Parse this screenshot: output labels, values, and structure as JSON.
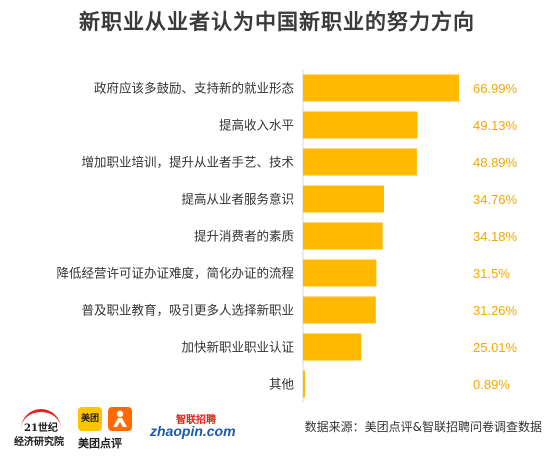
{
  "title": "新职业从业者认为中国新职业的努力方向",
  "source": "数据来源：美团点评&智联招聘问卷调查数据",
  "colors": {
    "bar": "#ffba00",
    "value_text": "#f3a800",
    "logo_red": "#e2231a",
    "logo_blue": "#1a5aa8",
    "meituan_yellow": "#ffc300"
  },
  "logos": {
    "inst_21_line1": "21世纪",
    "inst_21_line2": "经济研究院",
    "meituan_box": "美团",
    "meituan_text": "美团点评",
    "zhaopin_cn": "智联招聘",
    "zhaopin_en": "zhaopin.com"
  },
  "chart_data": {
    "type": "bar",
    "orientation": "horizontal",
    "title": "新职业从业者认为中国新职业的努力方向",
    "categories": [
      "政府应该多鼓励、支持新的就业形态",
      "提高收入水平",
      "增加职业培训，提升从业者手艺、技术",
      "提高从业者服务意识",
      "提升消费者的素质",
      "降低经营许可证办证难度，简化办证的流程",
      "普及职业教育，吸引更多人选择新职业",
      "加快新职业职业认证",
      "其他"
    ],
    "values": [
      66.99,
      49.13,
      48.89,
      34.76,
      34.18,
      31.5,
      31.26,
      25.01,
      0.89
    ],
    "value_labels": [
      "66.99%",
      "49.13%",
      "48.89%",
      "34.76%",
      "34.18%",
      "31.5%",
      "31.26%",
      "25.01%",
      "0.89%"
    ],
    "xlim": [
      0,
      100
    ],
    "unit": "%",
    "grid": false,
    "legend": "none"
  }
}
